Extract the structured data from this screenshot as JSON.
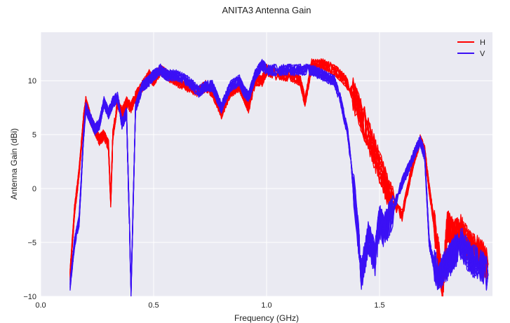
{
  "chart_data": {
    "type": "line",
    "title": "ANITA3 Antenna Gain",
    "xlabel": "Frequency (GHz)",
    "ylabel": "Antenna Gain (dBi)",
    "xlim": [
      0.0,
      2.0
    ],
    "ylim": [
      -10,
      14.5
    ],
    "xticks": [
      0.0,
      0.5,
      1.0,
      1.5
    ],
    "xtick_labels": [
      "0.0",
      "0.5",
      "1.0",
      "1.5"
    ],
    "yticks": [
      -10,
      -5,
      0,
      5,
      10
    ],
    "ytick_labels": [
      "−10",
      "−5",
      "0",
      "5",
      "10"
    ],
    "grid": true,
    "legend_position": "top-right",
    "background": "#eaeaf2",
    "series": [
      {
        "name": "H",
        "color": "#ff0000",
        "x": [
          0.13,
          0.15,
          0.17,
          0.19,
          0.2,
          0.22,
          0.24,
          0.26,
          0.28,
          0.3,
          0.31,
          0.32,
          0.34,
          0.36,
          0.38,
          0.4,
          0.42,
          0.45,
          0.48,
          0.5,
          0.53,
          0.56,
          0.6,
          0.65,
          0.7,
          0.73,
          0.76,
          0.8,
          0.84,
          0.88,
          0.9,
          0.92,
          0.95,
          0.98,
          1.0,
          1.05,
          1.1,
          1.15,
          1.17,
          1.2,
          1.25,
          1.3,
          1.35,
          1.4,
          1.45,
          1.5,
          1.55,
          1.6,
          1.65,
          1.68,
          1.7,
          1.72,
          1.74,
          1.76,
          1.78,
          1.8,
          1.83,
          1.86,
          1.9,
          1.94,
          1.98
        ],
        "values": [
          -8,
          -2,
          1.5,
          6.5,
          8.0,
          6.5,
          5.5,
          4.5,
          5.0,
          4.0,
          -1.2,
          5.0,
          8.0,
          7.0,
          8.0,
          7.5,
          8.5,
          9.5,
          10.5,
          10.0,
          11.0,
          10.5,
          10.0,
          9.5,
          9.0,
          9.5,
          9.0,
          7.0,
          9.0,
          9.5,
          8.5,
          7.5,
          10.0,
          10.0,
          11.0,
          10.5,
          10.5,
          10.0,
          8.0,
          11.5,
          11.5,
          11.0,
          10.0,
          8.0,
          5.0,
          2.0,
          -1.0,
          -2.5,
          2.5,
          4.5,
          3.5,
          0.0,
          -3.0,
          -6.0,
          -9.0,
          -3.5,
          -4.5,
          -4.0,
          -5.5,
          -6.0,
          -7.0
        ]
      },
      {
        "name": "V",
        "color": "#3b10f5",
        "x": [
          0.13,
          0.15,
          0.17,
          0.19,
          0.2,
          0.22,
          0.24,
          0.26,
          0.28,
          0.3,
          0.32,
          0.34,
          0.36,
          0.38,
          0.39,
          0.4,
          0.42,
          0.45,
          0.48,
          0.5,
          0.53,
          0.56,
          0.6,
          0.65,
          0.7,
          0.73,
          0.76,
          0.8,
          0.84,
          0.88,
          0.9,
          0.92,
          0.95,
          0.98,
          1.0,
          1.05,
          1.1,
          1.15,
          1.2,
          1.25,
          1.3,
          1.33,
          1.36,
          1.4,
          1.42,
          1.45,
          1.48,
          1.5,
          1.52,
          1.55,
          1.6,
          1.65,
          1.68,
          1.7,
          1.72,
          1.74,
          1.76,
          1.8,
          1.83,
          1.86,
          1.9,
          1.94,
          1.98
        ],
        "values": [
          -9,
          -5,
          -3,
          5.0,
          7.5,
          6.5,
          5.5,
          6.0,
          8.0,
          7.0,
          8.0,
          8.5,
          6.0,
          7.0,
          -1.0,
          -9.5,
          7.5,
          9.5,
          10.0,
          10.5,
          11.0,
          10.5,
          10.5,
          10.0,
          9.0,
          9.5,
          9.5,
          7.5,
          9.5,
          10.0,
          9.0,
          8.5,
          10.5,
          11.5,
          11.0,
          11.0,
          11.0,
          11.0,
          11.0,
          10.5,
          10.0,
          8.0,
          5.0,
          -3.0,
          -8.0,
          -4.5,
          -6.5,
          -3.0,
          -4.0,
          -2.5,
          0.5,
          3.0,
          4.5,
          3.0,
          -5.0,
          -7.0,
          -8.0,
          -7.0,
          -6.0,
          -5.0,
          -6.5,
          -7.0,
          -8.0
        ]
      }
    ]
  }
}
